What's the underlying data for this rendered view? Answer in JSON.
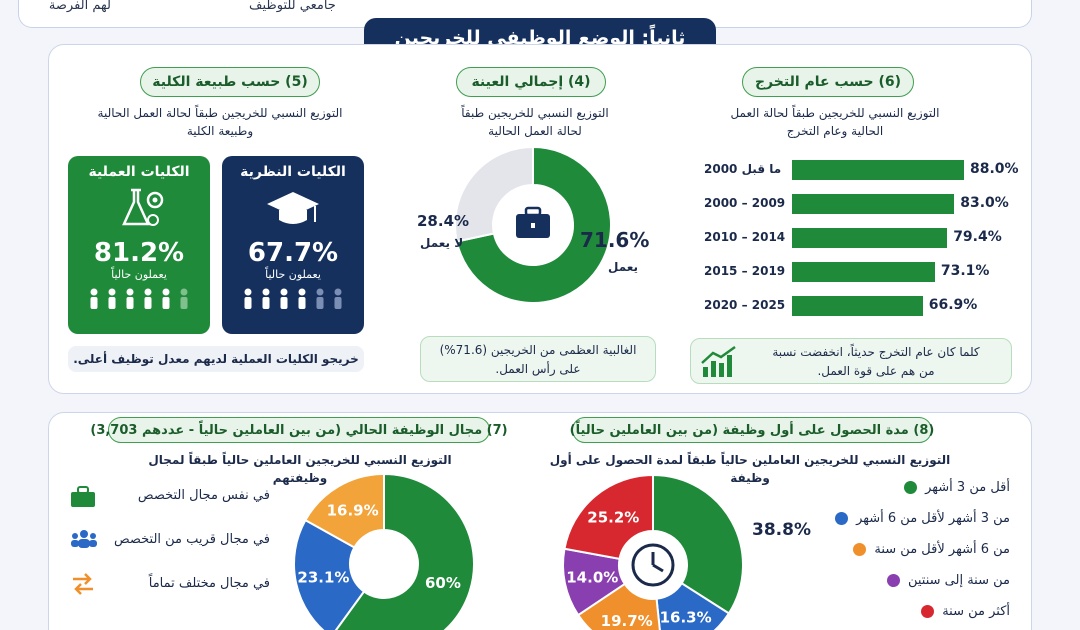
{
  "top": {
    "left": "جامعي للتوظيف",
    "right": "لهم الفرصة"
  },
  "section_title": "ثانياً: الوضع الوظيفي للخريجين",
  "colors": {
    "navy": "#16305e",
    "green": "#1f8a3a",
    "gray": "#e3e5ea",
    "blue": "#2a69c6",
    "orange": "#f0902c",
    "purple": "#8a3fb0",
    "red": "#d8282f",
    "amber": "#f2a33a"
  },
  "p5": {
    "pill": "(5) حسب طبيعة الكلية",
    "desc1": "التوزيع النسبي للخريجين طبقاً لحالة العمل الحالية",
    "desc2": "وطبيعة الكلية",
    "practical": {
      "title": "الكليات العملية",
      "value": "81.2%",
      "sub": "يعملون حالياً"
    },
    "theoretical": {
      "title": "الكليات النظرية",
      "value": "67.7%",
      "sub": "يعملون حالياً"
    },
    "note": "خريجو الكليات العملية لديهم معدل توظيف أعلى."
  },
  "p4": {
    "pill": "(4) إجمالي العينة",
    "desc1": "التوزيع النسبي للخريجين طبقاً",
    "desc2": "لحالة العمل الحالية",
    "work_value": "71.6%",
    "work_label": "يعمل",
    "nowork_value": "28.4%",
    "nowork_label": "لا يعمل",
    "note1": "الغالبية العظمى من الخريجين (71.6%)",
    "note2": "على رأس العمل."
  },
  "p6": {
    "pill": "(6) حسب عام التخرج",
    "desc1": "التوزيع النسبي للخريجين طبقاً لحالة العمل",
    "desc2": "الحالية وعام التخرج",
    "note1": "كلما كان عام التخرج حديثاً، انخفضت نسبة",
    "note2": "من هم على قوة العمل."
  },
  "p7": {
    "pill": "(7) مجال الوظيفة الحالي (من بين العاملين حالياً - عددهم 3,703)",
    "desc": "التوزيع النسبي للخريجين العاملين حالياً طبقاً لمجال وظيفتهم",
    "legend": [
      "في نفس مجال التخصص",
      "في مجال قريب من التخصص",
      "في مجال مختلف تماماً"
    ]
  },
  "p8": {
    "pill": "(8) مدة الحصول على أول وظيفة (من بين العاملين حالياً)",
    "desc": "التوزيع النسبي للخريجين العاملين حالياً طبقاً لمدة الحصول على أول وظيفة",
    "legend": [
      "أقل من 3 أشهر",
      "من 3 أشهر لأقل من 6 أشهر",
      "من 6 أشهر لأقل من سنة",
      "من سنة إلى سنتين",
      "أكثر من سنة"
    ]
  },
  "chart_data": [
    {
      "type": "pie",
      "title": "(4) إجمالي العينة",
      "categories": [
        "يعمل",
        "لا يعمل"
      ],
      "values": [
        71.6,
        28.4
      ]
    },
    {
      "type": "bar",
      "title": "(6) حسب عام التخرج",
      "categories": [
        "ما قبل 2000",
        "2000 – 2009",
        "2010 – 2014",
        "2015 – 2019",
        "2020 – 2025"
      ],
      "values": [
        88.0,
        83.0,
        79.4,
        73.1,
        66.9
      ],
      "labels": [
        "88.0%",
        "83.0%",
        "79.4%",
        "73.1%",
        "66.9%"
      ]
    },
    {
      "type": "pie",
      "title": "(7) مجال الوظيفة الحالي",
      "categories": [
        "في نفس مجال التخصص",
        "في مجال قريب من التخصص",
        "في مجال مختلف تماماً"
      ],
      "values": [
        60,
        23.1,
        16.9
      ],
      "labels": [
        "60%",
        "23.1%",
        "16.9%"
      ]
    },
    {
      "type": "pie",
      "title": "(8) مدة الحصول على أول وظيفة",
      "categories": [
        "أقل من 3 أشهر",
        "من 3 أشهر لأقل من 6 أشهر",
        "من 6 أشهر لأقل من سنة",
        "من سنة إلى سنتين",
        "أكثر من سنة"
      ],
      "values": [
        38.8,
        16.3,
        19.7,
        14.0,
        25.2
      ],
      "labels": [
        "38.8%",
        "16.3%",
        "19.7%",
        "14.0%",
        "25.2%"
      ]
    }
  ]
}
